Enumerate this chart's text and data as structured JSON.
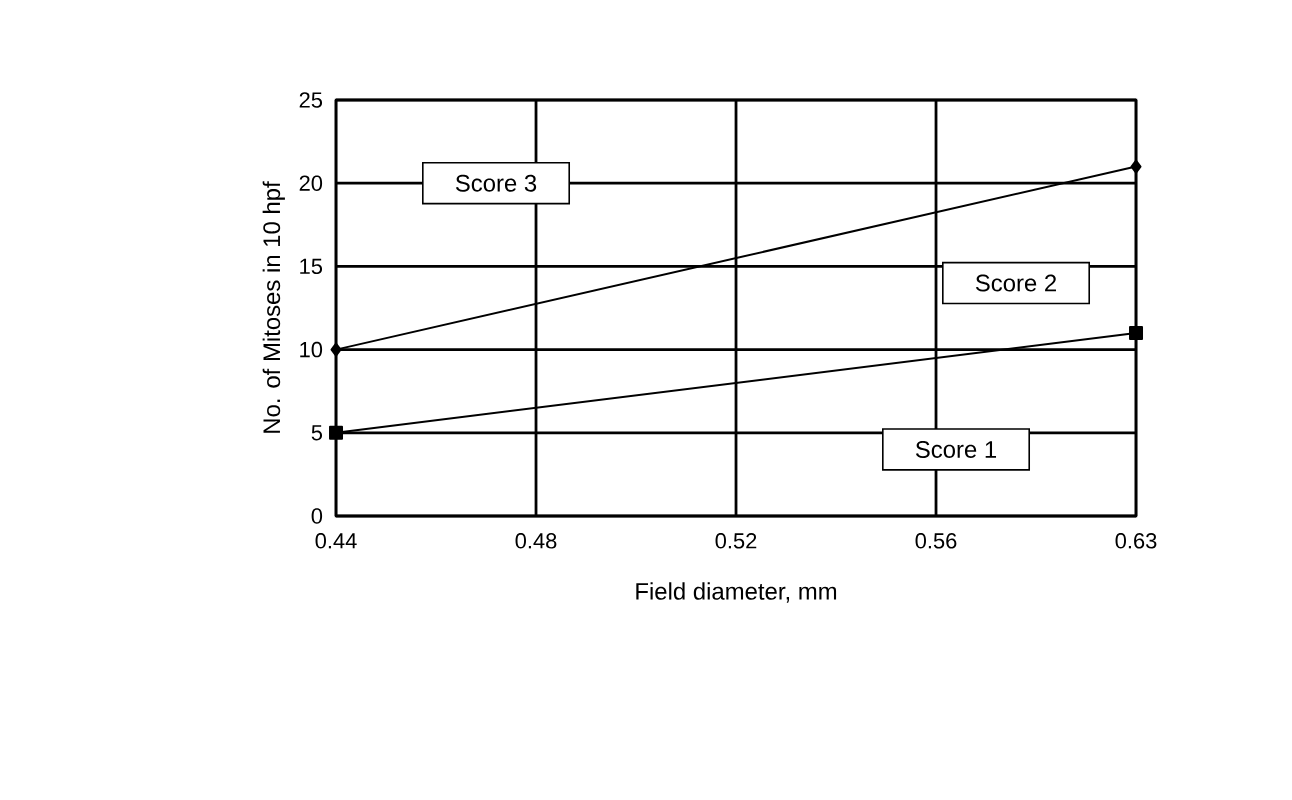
{
  "chart_data": {
    "type": "line",
    "xlabel": "Field diameter, mm",
    "ylabel": "No. of Mitoses in 10 hpf",
    "categories": [
      "0.44",
      "0.48",
      "0.52",
      "0.56",
      "0.63"
    ],
    "series": [
      {
        "color": "#000000",
        "marker": "square",
        "values": [
          5,
          null,
          null,
          null,
          11
        ]
      },
      {
        "color": "#000000",
        "marker": "diamond",
        "values": [
          10,
          null,
          null,
          null,
          21
        ]
      }
    ],
    "ylim": [
      0,
      25
    ],
    "yticks": [
      0,
      5,
      10,
      15,
      20,
      25
    ],
    "grid": true,
    "annotations": [
      "Score 1",
      "Score 2",
      "Score 3"
    ]
  }
}
